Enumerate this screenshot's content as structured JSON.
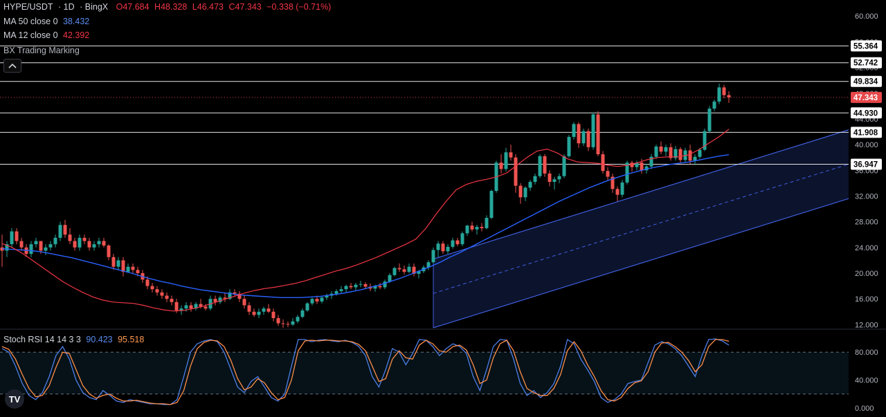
{
  "legend": {
    "symbol": "HYPE/USDT",
    "interval": "1D",
    "exchange": "BingX",
    "open": "O47.684",
    "high": "H48.328",
    "low": "L46.473",
    "close": "C47.343",
    "change": "−0.338 (−0.71%)",
    "ma50_label": "MA 50 close 0",
    "ma50_value": "38.432",
    "ma12_label": "MA 12 close 0",
    "ma12_value": "42.392",
    "indicator_label": "BX Trading Marking",
    "stoch_label": "Stoch RSI 14 14 3 3",
    "stoch_k": "90.423",
    "stoch_d": "95.518"
  },
  "colors": {
    "up": "#26a69a",
    "down": "#ef5350",
    "ma50": "#2962ff",
    "ma12": "#f23645",
    "channel": "#3f5fe0",
    "stoch_k": "#4d7fe8",
    "stoch_d": "#ff8f4a",
    "price_badge": "#e8474a"
  },
  "icons": {
    "collapse": "chevron-up-icon",
    "logo": "tradingview-logo-icon"
  },
  "logo_text": "TV",
  "chart_data": [
    {
      "type": "candlestick",
      "title": "HYPE/USDT · 1D · BingX",
      "ylim": [
        11.5,
        62.5
      ],
      "y_ticks": [
        "12.000",
        "16.000",
        "20.000",
        "24.000",
        "28.000",
        "32.000",
        "36.000",
        "40.000",
        "44.000",
        "48.000",
        "52.000",
        "56.000",
        "60.000"
      ],
      "last_price": "47.343",
      "levels": [
        "55.364",
        "52.742",
        "49.834",
        "44.930",
        "41.908",
        "36.947"
      ],
      "channel": {
        "start_index": 89,
        "end_index": 999,
        "lower_start": 11.5,
        "upper_start": 22.2,
        "slope_per_candle": 0.2345
      },
      "candles": [
        [
          24,
          26,
          21,
          23.5
        ],
        [
          23.5,
          25,
          22.5,
          24.5
        ],
        [
          24.5,
          27,
          24,
          26.5
        ],
        [
          26.5,
          27,
          24.5,
          25
        ],
        [
          25,
          25.5,
          23.5,
          24
        ],
        [
          24,
          24.5,
          22.5,
          23
        ],
        [
          23,
          25,
          22.5,
          24.5
        ],
        [
          24.5,
          25.5,
          24,
          25
        ],
        [
          25,
          25,
          23,
          23.5
        ],
        [
          23.5,
          24.5,
          22.8,
          24
        ],
        [
          24,
          25,
          23.5,
          24.5
        ],
        [
          24.5,
          26,
          24,
          25.5
        ],
        [
          25.5,
          28,
          25,
          27.5
        ],
        [
          27.5,
          28.3,
          25.5,
          26
        ],
        [
          26,
          27,
          24.5,
          25
        ],
        [
          25,
          25.5,
          23.5,
          24
        ],
        [
          24,
          26,
          23.5,
          25.5
        ],
        [
          25.5,
          26,
          24.5,
          25
        ],
        [
          25,
          25.5,
          23.5,
          24
        ],
        [
          24,
          25,
          23.5,
          24.5
        ],
        [
          24.5,
          25.5,
          24,
          25
        ],
        [
          25,
          25.5,
          24,
          24.3
        ],
        [
          24.3,
          24.5,
          22,
          22.5
        ],
        [
          22.5,
          23,
          20.5,
          21
        ],
        [
          21,
          22.5,
          20.5,
          22
        ],
        [
          22,
          22.5,
          19.5,
          20.2
        ],
        [
          20.2,
          21.5,
          20,
          21
        ],
        [
          21,
          21.5,
          20,
          20.5
        ],
        [
          20.5,
          21,
          19.5,
          20
        ],
        [
          20,
          20.5,
          18.5,
          19
        ],
        [
          19,
          19.5,
          17.5,
          18
        ],
        [
          18,
          18.5,
          17,
          17.5
        ],
        [
          17.5,
          18,
          16.5,
          17
        ],
        [
          17,
          17.5,
          16,
          16.5
        ],
        [
          16.5,
          17,
          15.5,
          16
        ],
        [
          16,
          16.5,
          15,
          15.5
        ],
        [
          15.5,
          16,
          13.8,
          14.2
        ],
        [
          14.2,
          15,
          13.5,
          14.5
        ],
        [
          14.5,
          15.5,
          14,
          15
        ],
        [
          15,
          15.5,
          14,
          14.5
        ],
        [
          14.5,
          15.5,
          14.2,
          15.2
        ],
        [
          15.2,
          16,
          14.5,
          14.8
        ],
        [
          14.8,
          15.2,
          14.2,
          14.5
        ],
        [
          14.5,
          16.5,
          14.2,
          16
        ],
        [
          16,
          16.5,
          15,
          15.5
        ],
        [
          15.5,
          16.5,
          15.2,
          16.2
        ],
        [
          16.2,
          17,
          15.5,
          16
        ],
        [
          16,
          17.5,
          15.8,
          17
        ],
        [
          17,
          17.5,
          16.5,
          16.8
        ],
        [
          16.8,
          17.2,
          15.5,
          16
        ],
        [
          16,
          16.5,
          14.5,
          15
        ],
        [
          15,
          15.5,
          13.5,
          14
        ],
        [
          14,
          14.5,
          13.2,
          13.5
        ],
        [
          13.5,
          14.5,
          13,
          14
        ],
        [
          14,
          14.8,
          13.5,
          14.5
        ],
        [
          14.5,
          15.2,
          13.8,
          14
        ],
        [
          14,
          14.5,
          12.5,
          13
        ],
        [
          13,
          13.5,
          11.8,
          12.2
        ],
        [
          12.2,
          12.8,
          11.5,
          12.1
        ],
        [
          12.1,
          12.5,
          11.6,
          12
        ],
        [
          12,
          13,
          11.8,
          12.5
        ],
        [
          12.5,
          13.5,
          12.2,
          13.2
        ],
        [
          13.2,
          14.5,
          13,
          14.2
        ],
        [
          14.2,
          15.5,
          14,
          15.3
        ],
        [
          15.3,
          16.2,
          15,
          16
        ],
        [
          16,
          16.5,
          15.2,
          15.6
        ],
        [
          15.6,
          16.5,
          15.3,
          16.2
        ],
        [
          16.2,
          16.8,
          15.8,
          16.5
        ],
        [
          16.5,
          17.2,
          16,
          16.8
        ],
        [
          16.8,
          17.5,
          16.5,
          17.2
        ],
        [
          17.2,
          18,
          16.8,
          17.5
        ],
        [
          17.5,
          18.2,
          17,
          18
        ],
        [
          18,
          18.5,
          17.5,
          17.8
        ],
        [
          17.8,
          18.5,
          17.3,
          18.2
        ],
        [
          18.2,
          18.8,
          17.8,
          18.3
        ],
        [
          18.3,
          18.6,
          17.5,
          17.9
        ],
        [
          17.9,
          18.4,
          17.2,
          17.6
        ],
        [
          17.6,
          18.2,
          17.1,
          18
        ],
        [
          18,
          18.5,
          17.5,
          17.8
        ],
        [
          17.8,
          19,
          17.5,
          18.7
        ],
        [
          18.7,
          20,
          18.5,
          19.7
        ],
        [
          19.7,
          21,
          19.5,
          20.8
        ],
        [
          20.8,
          21.5,
          20.2,
          20.6
        ],
        [
          20.6,
          21.2,
          19.8,
          20.2
        ],
        [
          20.2,
          21.5,
          20,
          21
        ],
        [
          21,
          21.5,
          19.5,
          19.9
        ],
        [
          19.9,
          20.5,
          19.2,
          20.3
        ],
        [
          20.3,
          21.2,
          20,
          20.9
        ],
        [
          20.9,
          22,
          20.5,
          21.7
        ],
        [
          21.7,
          24,
          21.5,
          23.6
        ],
        [
          23.6,
          25,
          22.5,
          24.6
        ],
        [
          24.6,
          25,
          23,
          23.4
        ],
        [
          23.4,
          24.5,
          23,
          24.1
        ],
        [
          24.1,
          25.5,
          23.8,
          25.1
        ],
        [
          25.1,
          25.5,
          24.2,
          24.5
        ],
        [
          24.5,
          26.5,
          24.2,
          26.2
        ],
        [
          26.2,
          27.5,
          25.8,
          27.4
        ],
        [
          27.4,
          28,
          26.5,
          26.8
        ],
        [
          26.8,
          27.5,
          26,
          27.2
        ],
        [
          27.2,
          27.8,
          26.5,
          27
        ],
        [
          27,
          29,
          26.8,
          28.6
        ],
        [
          28.6,
          33,
          28.4,
          32.8
        ],
        [
          32.8,
          37.5,
          32.5,
          37.2
        ],
        [
          37.2,
          38.5,
          35.5,
          36.2
        ],
        [
          36.2,
          39.5,
          35.8,
          38.8
        ],
        [
          38.8,
          40,
          37.5,
          38
        ],
        [
          38,
          38.5,
          32.5,
          33.6
        ],
        [
          33.6,
          34,
          30.8,
          31.8
        ],
        [
          31.8,
          33.5,
          31.2,
          33.3
        ],
        [
          33.3,
          34.5,
          32.8,
          34.2
        ],
        [
          34.2,
          35.5,
          33.8,
          35.1
        ],
        [
          35.1,
          38.5,
          34.8,
          38.2
        ],
        [
          38.2,
          38.5,
          35,
          35.5
        ],
        [
          35.5,
          36,
          33.5,
          34.2
        ],
        [
          34.2,
          35,
          33,
          34.6
        ],
        [
          34.6,
          35.5,
          34,
          35.1
        ],
        [
          35.1,
          38.5,
          34.8,
          38.2
        ],
        [
          38.2,
          41.5,
          38,
          41.2
        ],
        [
          41.2,
          43.5,
          40.8,
          43.2
        ],
        [
          43.2,
          43.5,
          39.5,
          40.2
        ],
        [
          40.2,
          42.5,
          39.8,
          42.1
        ],
        [
          42.1,
          42.5,
          39,
          39.6
        ],
        [
          39.6,
          45,
          39.2,
          44.7
        ],
        [
          44.7,
          45.2,
          38.2,
          38.5
        ],
        [
          38.5,
          39,
          35.5,
          35.9
        ],
        [
          35.9,
          36.5,
          34.5,
          35
        ],
        [
          35,
          35.5,
          32.5,
          33.1
        ],
        [
          33.1,
          33.5,
          31.2,
          32.2
        ],
        [
          32.2,
          34.5,
          31.8,
          34.1
        ],
        [
          34.1,
          37.5,
          33.8,
          37.2
        ],
        [
          37.2,
          37.5,
          35.8,
          36.5
        ],
        [
          36.5,
          37.5,
          36,
          37.2
        ],
        [
          37.2,
          37.8,
          35.5,
          36
        ],
        [
          36,
          37,
          35.5,
          36.6
        ],
        [
          36.6,
          38.5,
          36.2,
          38.1
        ],
        [
          38.1,
          40,
          37.8,
          39.7
        ],
        [
          39.7,
          40.5,
          38.5,
          38.9
        ],
        [
          38.9,
          40,
          38.2,
          39.6
        ],
        [
          39.6,
          40.2,
          37.5,
          37.9
        ],
        [
          37.9,
          39.8,
          37.5,
          39.3
        ],
        [
          39.3,
          39.6,
          37.2,
          37.6
        ],
        [
          37.6,
          39.5,
          37.3,
          39.1
        ],
        [
          39.1,
          40,
          37,
          37.5
        ],
        [
          37.5,
          38.5,
          36.8,
          38.1
        ],
        [
          38.1,
          39.5,
          37.8,
          39.2
        ],
        [
          39.2,
          42.5,
          39,
          42.1
        ],
        [
          42.1,
          46,
          41.8,
          45.6
        ],
        [
          45.6,
          47,
          45.2,
          46.7
        ],
        [
          46.7,
          49.5,
          46.3,
          48.9
        ],
        [
          48.9,
          49.3,
          47.2,
          47.7
        ],
        [
          47.7,
          48.3,
          46.5,
          47.343
        ]
      ],
      "ma50": [
        23.8,
        23.7,
        23.6,
        23.5,
        23.3,
        23.0,
        22.7,
        22.4,
        22.0,
        21.6,
        21.2,
        20.8,
        20.4,
        20.0,
        19.5,
        19.1,
        18.7,
        18.4,
        18.0,
        17.7,
        17.4,
        17.2,
        17.0,
        16.8,
        16.6,
        16.5,
        16.4,
        16.3,
        16.2,
        16.2,
        16.2,
        16.3,
        16.4,
        16.6,
        16.8,
        17.1,
        17.4,
        17.8,
        18.2,
        18.7,
        19.2,
        19.8,
        20.4,
        21.0,
        21.7,
        22.5,
        23.2,
        24.0,
        24.8,
        25.6,
        26.4,
        27.2,
        28.0,
        28.8,
        29.6,
        30.4,
        31.2,
        31.9,
        32.6,
        33.3,
        33.9,
        34.5,
        35.0,
        35.5,
        35.9,
        36.3,
        36.6,
        36.9,
        37.1,
        37.3,
        37.6,
        37.9,
        38.2,
        38.432
      ],
      "ma12": [
        24.6,
        24.0,
        23.1,
        22.0,
        20.9,
        19.8,
        18.7,
        17.8,
        17.0,
        16.3,
        15.8,
        15.5,
        15.4,
        15.3,
        15.0,
        14.6,
        14.3,
        14.1,
        14.2,
        14.5,
        14.9,
        15.4,
        15.9,
        16.4,
        16.9,
        17.3,
        17.6,
        17.8,
        18.1,
        18.4,
        18.8,
        19.3,
        19.8,
        20.3,
        20.7,
        21.2,
        21.8,
        22.4,
        23.1,
        23.8,
        24.5,
        25.3,
        27.0,
        29.2,
        31.2,
        33.0,
        33.8,
        34.3,
        34.6,
        35.0,
        35.6,
        36.8,
        38.0,
        39.0,
        39.3,
        38.7,
        37.8,
        37.3,
        37.2,
        37.1,
        36.8,
        36.6,
        36.8,
        37.2,
        37.7,
        38.0,
        38.1,
        38.1,
        38.4,
        39.2,
        40.2,
        41.2,
        42.392
      ]
    },
    {
      "type": "line",
      "title": "Stoch RSI 14 14 3 3",
      "ylim": [
        0,
        100
      ],
      "y_ticks": [
        "0.000",
        "40.000",
        "80.000"
      ],
      "bands": [
        20,
        80
      ],
      "series": [
        {
          "name": "K",
          "values": [
            85,
            80,
            60,
            35,
            18,
            12,
            22,
            45,
            75,
            88,
            70,
            40,
            22,
            15,
            12,
            25,
            18,
            10,
            8,
            12,
            10,
            8,
            6,
            6,
            5,
            5,
            12,
            45,
            80,
            92,
            96,
            98,
            95,
            80,
            55,
            30,
            22,
            38,
            45,
            30,
            15,
            10,
            20,
            60,
            98,
            98,
            95,
            97,
            98,
            96,
            95,
            97,
            94,
            88,
            75,
            45,
            30,
            55,
            85,
            80,
            62,
            78,
            98,
            97,
            88,
            75,
            85,
            92,
            88,
            78,
            45,
            25,
            55,
            88,
            98,
            97,
            70,
            35,
            18,
            25,
            15,
            22,
            35,
            60,
            98,
            92,
            70,
            55,
            38,
            15,
            8,
            12,
            20,
            35,
            38,
            40,
            65,
            90,
            95,
            92,
            85,
            75,
            60,
            45,
            75,
            98,
            99,
            96,
            90
          ]
        },
        {
          "name": "D",
          "values": [
            88,
            84,
            70,
            48,
            28,
            16,
            18,
            32,
            58,
            80,
            78,
            55,
            32,
            20,
            14,
            18,
            20,
            14,
            10,
            10,
            11,
            9,
            7,
            6,
            6,
            5,
            8,
            25,
            60,
            85,
            94,
            97,
            96,
            88,
            68,
            42,
            26,
            30,
            42,
            36,
            22,
            12,
            15,
            40,
            82,
            96,
            97,
            96,
            97,
            97,
            96,
            96,
            95,
            91,
            82,
            60,
            38,
            42,
            70,
            82,
            72,
            70,
            90,
            97,
            92,
            82,
            80,
            88,
            90,
            83,
            62,
            35,
            40,
            72,
            92,
            97,
            82,
            52,
            28,
            22,
            18,
            18,
            28,
            48,
            82,
            95,
            82,
            62,
            45,
            25,
            12,
            10,
            15,
            28,
            36,
            39,
            52,
            80,
            93,
            94,
            88,
            80,
            68,
            52,
            62,
            88,
            98,
            98,
            95.518
          ]
        }
      ]
    }
  ]
}
